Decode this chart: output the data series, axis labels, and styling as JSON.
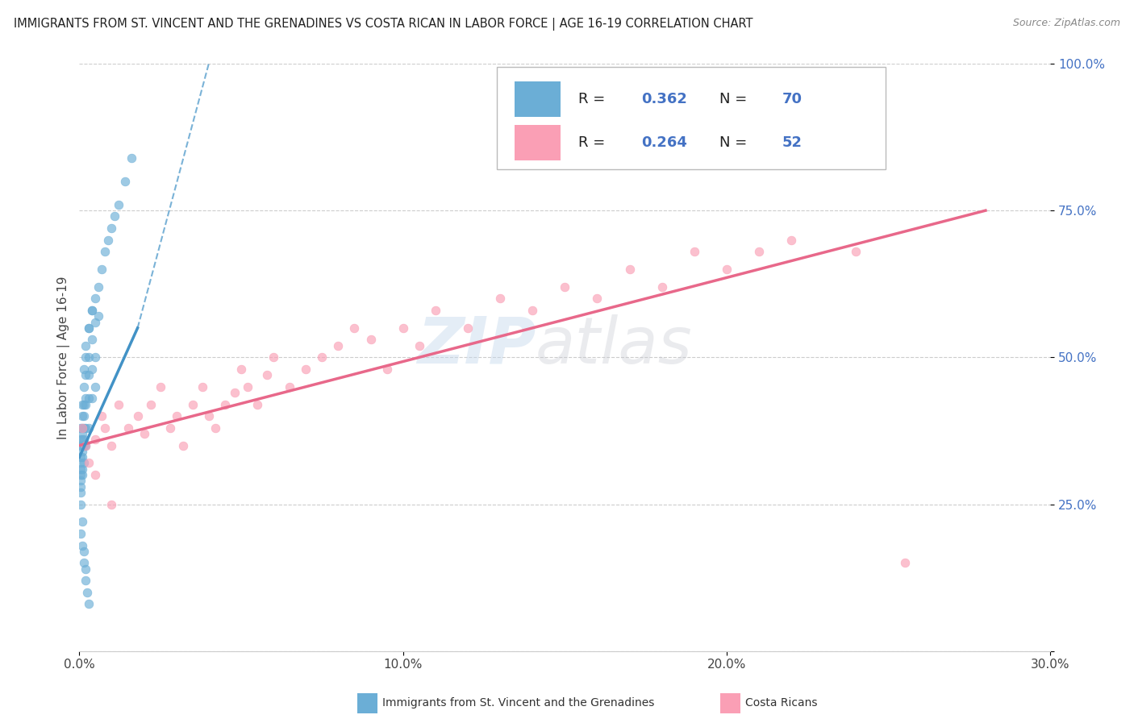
{
  "title": "IMMIGRANTS FROM ST. VINCENT AND THE GRENADINES VS COSTA RICAN IN LABOR FORCE | AGE 16-19 CORRELATION CHART",
  "source": "Source: ZipAtlas.com",
  "ylabel": "In Labor Force | Age 16-19",
  "xlim": [
    0.0,
    30.0
  ],
  "ylim": [
    0.0,
    100.0
  ],
  "blue_R": 0.362,
  "blue_N": 70,
  "pink_R": 0.264,
  "pink_N": 52,
  "blue_color": "#6BAED6",
  "pink_color": "#FA9FB5",
  "blue_line_color": "#4292C6",
  "pink_line_color": "#E8688A",
  "legend_label_blue": "Immigrants from St. Vincent and the Grenadines",
  "legend_label_pink": "Costa Ricans",
  "watermark_zip": "ZIP",
  "watermark_atlas": "atlas",
  "blue_x": [
    0.05,
    0.05,
    0.05,
    0.05,
    0.05,
    0.05,
    0.05,
    0.05,
    0.05,
    0.05,
    0.1,
    0.1,
    0.1,
    0.1,
    0.1,
    0.1,
    0.1,
    0.1,
    0.1,
    0.1,
    0.15,
    0.15,
    0.15,
    0.15,
    0.15,
    0.15,
    0.15,
    0.15,
    0.2,
    0.2,
    0.2,
    0.2,
    0.2,
    0.2,
    0.2,
    0.3,
    0.3,
    0.3,
    0.3,
    0.3,
    0.3,
    0.4,
    0.4,
    0.4,
    0.4,
    0.4,
    0.5,
    0.5,
    0.5,
    0.5,
    0.6,
    0.6,
    0.7,
    0.8,
    0.9,
    1.0,
    1.1,
    1.2,
    1.4,
    1.6,
    0.05,
    0.1,
    0.15,
    0.2,
    0.25,
    0.3,
    0.05,
    0.1,
    0.15,
    0.2
  ],
  "blue_y": [
    35,
    33,
    31,
    29,
    28,
    36,
    38,
    30,
    27,
    32,
    40,
    38,
    35,
    33,
    30,
    42,
    37,
    34,
    31,
    36,
    45,
    42,
    38,
    35,
    32,
    48,
    40,
    36,
    50,
    47,
    43,
    38,
    35,
    52,
    42,
    55,
    50,
    47,
    43,
    38,
    55,
    58,
    53,
    48,
    43,
    58,
    60,
    56,
    50,
    45,
    62,
    57,
    65,
    68,
    70,
    72,
    74,
    76,
    80,
    84,
    20,
    18,
    15,
    12,
    10,
    8,
    25,
    22,
    17,
    14
  ],
  "pink_x": [
    0.1,
    0.2,
    0.3,
    0.5,
    0.7,
    0.8,
    1.0,
    1.2,
    1.5,
    1.8,
    2.0,
    2.2,
    2.5,
    2.8,
    3.0,
    3.2,
    3.5,
    3.8,
    4.0,
    4.2,
    4.5,
    4.8,
    5.0,
    5.2,
    5.5,
    5.8,
    6.0,
    6.5,
    7.0,
    7.5,
    8.0,
    8.5,
    9.0,
    9.5,
    10.0,
    10.5,
    11.0,
    12.0,
    13.0,
    14.0,
    15.0,
    16.0,
    17.0,
    18.0,
    19.0,
    20.0,
    21.0,
    22.0,
    24.0,
    25.5,
    0.5,
    1.0
  ],
  "pink_y": [
    38,
    35,
    32,
    36,
    40,
    38,
    35,
    42,
    38,
    40,
    37,
    42,
    45,
    38,
    40,
    35,
    42,
    45,
    40,
    38,
    42,
    44,
    48,
    45,
    42,
    47,
    50,
    45,
    48,
    50,
    52,
    55,
    53,
    48,
    55,
    52,
    58,
    55,
    60,
    58,
    62,
    60,
    65,
    62,
    68,
    65,
    68,
    70,
    68,
    15,
    30,
    25
  ],
  "blue_line_x0": 0.0,
  "blue_line_y0": 33.0,
  "blue_line_x1": 1.8,
  "blue_line_y1": 55.0,
  "blue_dash_x0": 1.8,
  "blue_dash_y0": 55.0,
  "blue_dash_x1": 4.0,
  "blue_dash_y1": 100.0,
  "pink_line_x0": 0.0,
  "pink_line_y0": 35.0,
  "pink_line_x1": 28.0,
  "pink_line_y1": 75.0
}
